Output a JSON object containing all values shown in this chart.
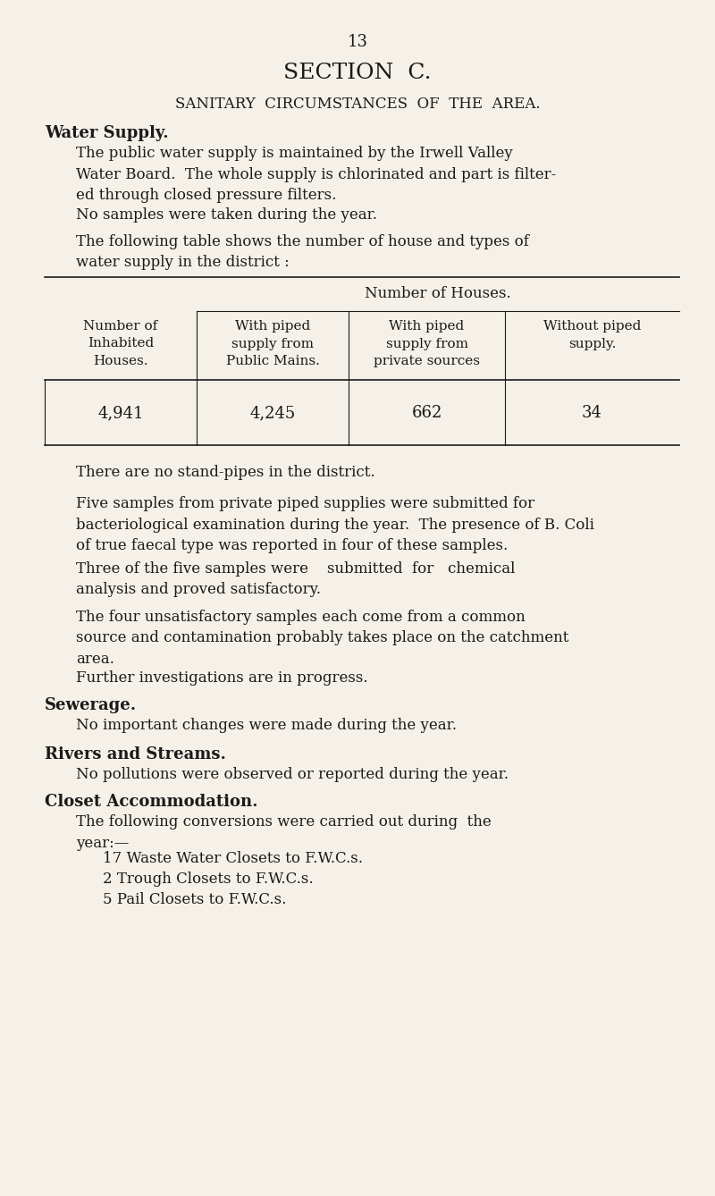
{
  "bg_color": "#f5f0e8",
  "text_color": "#1a1a1a",
  "page_number": "13",
  "section_title": "SECTION  C.",
  "subtitle": "SANITARY  CIRCUMSTANCES  OF  THE  AREA.",
  "water_supply_header": "Water Supply.",
  "para1": "The public water supply is maintained by the Irwell Valley\nWater Board.  The whole supply is chlorinated and part is filter-\ned through closed pressure filters.",
  "para2": "No samples were taken during the year.",
  "para3": "The following table shows the number of house and types of\nwater supply in the district :",
  "table_header_top": "Number of Houses.",
  "table_col0_header": "Number of\nInhabited\nHouses.",
  "table_col1_header": "With piped\nsupply from\nPublic Mains.",
  "table_col2_header": "With piped\nsupply from\nprivate sources",
  "table_col3_header": "Without piped\nsupply.",
  "table_row_values": [
    "4,941",
    "4,245",
    "662",
    "34"
  ],
  "para4": "There are no stand-pipes in the district.",
  "para5": "Five samples from private piped supplies were submitted for\nbacteriological examination during the year.  The presence of B. Coli\nof true faecal type was reported in four of these samples.",
  "para6": "Three of the five samples were    submitted  for   chemical\nanalysis and proved satisfactory.",
  "para7": "The four unsatisfactory samples each come from a common\nsource and contamination probably takes place on the catchment\narea.",
  "para8": "Further investigations are in progress.",
  "sewerage_header": "Sewerage.",
  "para9": "No important changes were made during the year.",
  "rivers_header": "Rivers and Streams.",
  "para10": "No pollutions were observed or reported during the year.",
  "closet_header": "Closet Accommodation.",
  "para11": "The following conversions were carried out during  the\nyear:—",
  "list_item1": "17 Waste Water Closets to F.W.C.s.",
  "list_item2": "2 Trough Closets to F.W.C.s.",
  "list_item3": "5 Pail Closets to F.W.C.s."
}
